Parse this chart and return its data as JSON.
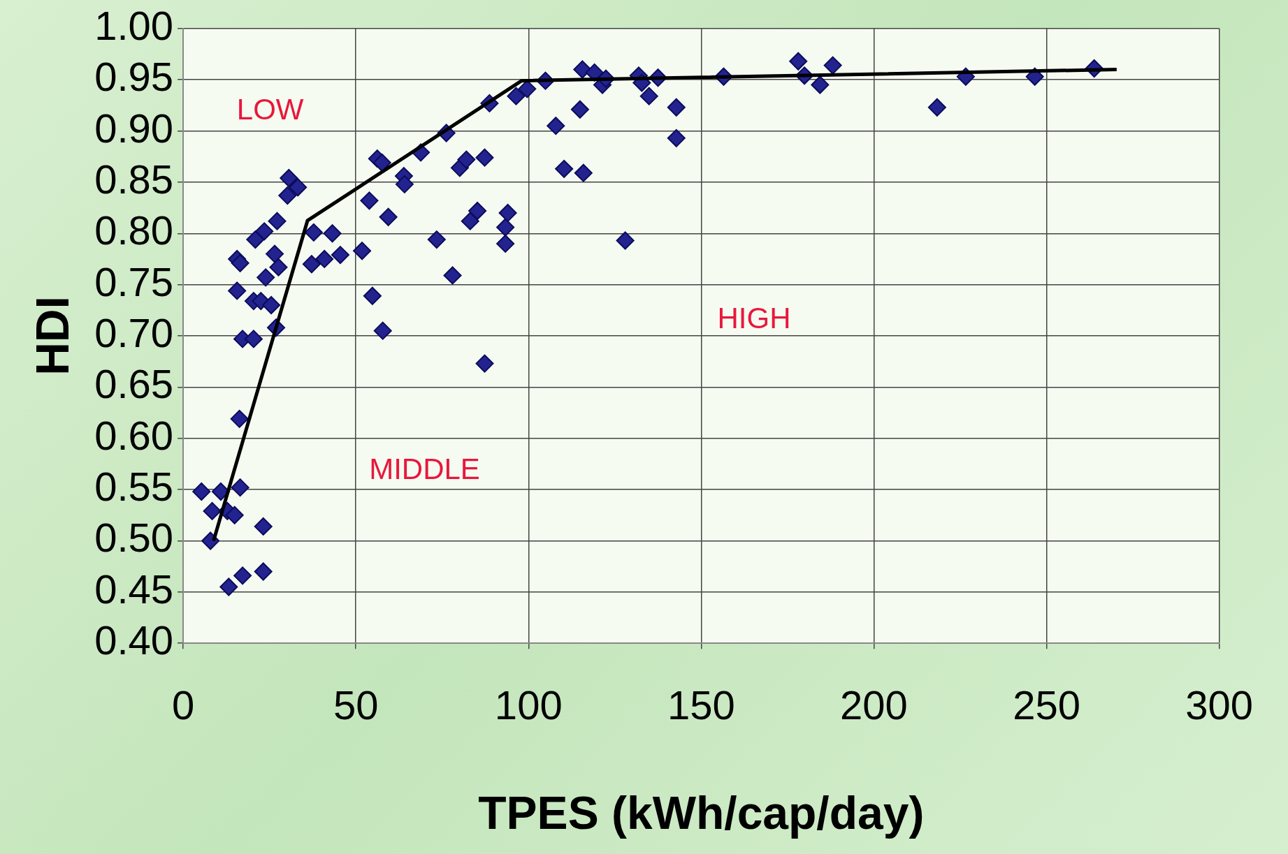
{
  "chart_data": {
    "type": "scatter",
    "xlabel": "TPES (kWh/cap/day)",
    "ylabel": "HDI",
    "xlim": [
      0,
      300
    ],
    "xticks": [
      0,
      50,
      100,
      150,
      200,
      250,
      300
    ],
    "ylim": [
      0.4,
      1.0
    ],
    "yticks": [
      {
        "value": 0.4,
        "label": "0.40"
      },
      {
        "value": 0.45,
        "label": "0.45"
      },
      {
        "value": 0.5,
        "label": "0.50"
      },
      {
        "value": 0.55,
        "label": "0.55"
      },
      {
        "value": 0.6,
        "label": "0.60"
      },
      {
        "value": 0.65,
        "label": "0.65"
      },
      {
        "value": 0.7,
        "label": "0.70"
      },
      {
        "value": 0.75,
        "label": "0.75"
      },
      {
        "value": 0.8,
        "label": "0.80"
      },
      {
        "value": 0.85,
        "label": "0.85"
      },
      {
        "value": 0.9,
        "label": "0.90"
      },
      {
        "value": 0.95,
        "label": "0.95"
      },
      {
        "value": 1.0,
        "label": "1.00"
      }
    ],
    "grid": true,
    "legend": false,
    "marker": "diamond",
    "annotations": [
      "LOW",
      "MIDDLE",
      "HIGH"
    ],
    "series": [
      {
        "type": "scatter",
        "color": "#23238f",
        "x": [
          5.3,
          8.4,
          7.9,
          10.9,
          12.8,
          14.9,
          13.2,
          16.5,
          17.2,
          23.2,
          23.2,
          16.3,
          15.6,
          15.6,
          16.5,
          17.2,
          20.4,
          20.4,
          22.5,
          25.5,
          26.9,
          23.9,
          20.9,
          23.5,
          27.2,
          26.5,
          27.6,
          30.6,
          30.2,
          33.2,
          37.8,
          37.2,
          40.9,
          43.2,
          45.5,
          51.8,
          53.9,
          54.8,
          56.2,
          57.6,
          57.8,
          59.4,
          63.9,
          64.1,
          68.8,
          73.4,
          76.2,
          78.0,
          80.1,
          82.0,
          83.1,
          85.2,
          87.3,
          87.3,
          88.7,
          93.3,
          93.3,
          94.0,
          96.4,
          99.6,
          104.9,
          107.9,
          110.3,
          114.9,
          115.6,
          115.9,
          119.1,
          121.4,
          122.4,
          128.0,
          131.9,
          132.8,
          134.9,
          137.5,
          142.8,
          142.8,
          156.5,
          178.1,
          179.9,
          184.4,
          188.1,
          218.3,
          226.6,
          246.6,
          263.8
        ],
        "values": [
          0.548,
          0.529,
          0.5,
          0.548,
          0.529,
          0.525,
          0.455,
          0.552,
          0.466,
          0.47,
          0.514,
          0.619,
          0.744,
          0.775,
          0.771,
          0.697,
          0.697,
          0.734,
          0.734,
          0.73,
          0.708,
          0.757,
          0.794,
          0.802,
          0.812,
          0.78,
          0.767,
          0.854,
          0.837,
          0.845,
          0.801,
          0.77,
          0.775,
          0.8,
          0.779,
          0.783,
          0.832,
          0.739,
          0.873,
          0.869,
          0.705,
          0.816,
          0.856,
          0.848,
          0.879,
          0.794,
          0.898,
          0.759,
          0.864,
          0.872,
          0.812,
          0.822,
          0.874,
          0.673,
          0.927,
          0.806,
          0.79,
          0.82,
          0.934,
          0.941,
          0.949,
          0.905,
          0.863,
          0.921,
          0.96,
          0.859,
          0.957,
          0.945,
          0.951,
          0.793,
          0.954,
          0.947,
          0.934,
          0.952,
          0.923,
          0.893,
          0.953,
          0.968,
          0.954,
          0.945,
          0.964,
          0.923,
          0.953,
          0.953,
          0.961
        ]
      },
      {
        "type": "line",
        "color": "#000000",
        "marker": "none",
        "x": [
          8.8,
          36.0,
          98.0,
          270.3
        ],
        "values": [
          0.5,
          0.8125,
          0.949,
          0.96
        ]
      }
    ]
  }
}
